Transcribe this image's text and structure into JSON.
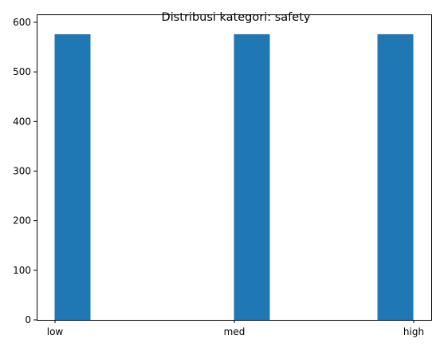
{
  "chart_data": {
    "type": "bar",
    "title": "Distribusi kategori: safety",
    "xlabel": "",
    "ylabel": "",
    "categories": [
      "low",
      "med",
      "high"
    ],
    "values": [
      576,
      576,
      576
    ],
    "ylim": [
      0,
      600
    ],
    "yticks": [
      0,
      100,
      200,
      300,
      400,
      500,
      600
    ],
    "grid": false,
    "bar_color": "#1f77b4"
  }
}
